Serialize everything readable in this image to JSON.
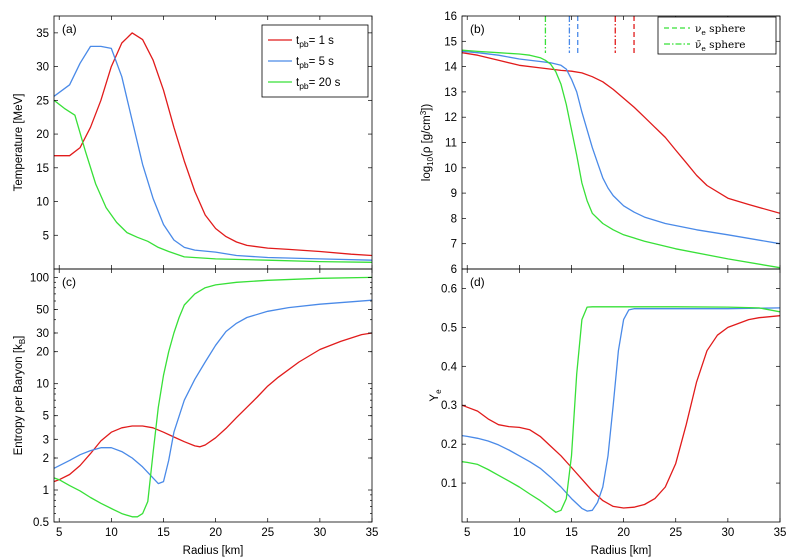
{
  "colors": {
    "red": "#e11b1b",
    "blue": "#4a8ae8",
    "green": "#38e038"
  },
  "legend_a": [
    {
      "label": "t",
      "sub": "pb",
      "suffix": "= 1 s",
      "color": "red"
    },
    {
      "label": "t",
      "sub": "pb",
      "suffix": "= 5 s",
      "color": "blue"
    },
    {
      "label": "t",
      "sub": "pb",
      "suffix": "= 20 s",
      "color": "green"
    }
  ],
  "legend_b": [
    {
      "symbol": "ν",
      "sub": "e",
      "suffix": " sphere",
      "style": "dashed",
      "color": "green"
    },
    {
      "symbol": "ν̄",
      "sub": "e",
      "suffix": " sphere",
      "style": "dashdot",
      "color": "green"
    }
  ],
  "chart_data": [
    {
      "id": "a",
      "panel_label": "(a)",
      "type": "line",
      "xlabel": "",
      "ylabel": "Temperature [MeV]",
      "yscale": "linear",
      "xlim": [
        4.5,
        35
      ],
      "ylim": [
        0,
        37.5
      ],
      "xticks": [
        5,
        10,
        15,
        20,
        25,
        30,
        35
      ],
      "xticklabels": [],
      "yticks": [
        5,
        10,
        15,
        20,
        25,
        30,
        35
      ],
      "series": [
        {
          "name": "t_pb = 1 s",
          "color": "red",
          "x": [
            4.5,
            6,
            7,
            8,
            9,
            10,
            11,
            12,
            13,
            14,
            15,
            16,
            17,
            18,
            19,
            20,
            21,
            22,
            23,
            25,
            27,
            30,
            33,
            35
          ],
          "y": [
            16.8,
            16.8,
            18,
            21,
            25,
            30,
            33.5,
            35,
            34,
            31,
            26.5,
            21,
            16,
            11.5,
            8,
            6,
            4.8,
            4,
            3.5,
            3.1,
            2.9,
            2.6,
            2.2,
            2
          ]
        },
        {
          "name": "t_pb = 5 s",
          "color": "blue",
          "x": [
            4.5,
            6,
            7,
            8,
            9,
            10,
            11,
            12,
            13,
            14,
            15,
            16,
            17,
            18,
            20,
            22,
            25,
            30,
            35
          ],
          "y": [
            25.6,
            27.3,
            30.5,
            33,
            33,
            32.7,
            28.5,
            22,
            15.5,
            10.5,
            6.6,
            4.3,
            3.2,
            2.8,
            2.5,
            2,
            1.7,
            1.5,
            1.3
          ]
        },
        {
          "name": "t_pb = 20 s",
          "color": "green",
          "x": [
            4.5,
            5.5,
            6.5,
            7.5,
            8.5,
            9.5,
            10.5,
            11.5,
            12.5,
            13.5,
            14.5,
            15.5,
            17,
            20,
            25,
            30,
            35
          ],
          "y": [
            25,
            23.8,
            22.8,
            17.5,
            12.6,
            9.1,
            6.9,
            5.4,
            4.7,
            4.1,
            3.2,
            2.6,
            1.8,
            1.5,
            1.3,
            1.1,
            1
          ]
        }
      ]
    },
    {
      "id": "b",
      "panel_label": "(b)",
      "type": "line",
      "xlabel": "",
      "ylabel": "log10(ρ [g/cm3])",
      "yscale": "linear",
      "xlim": [
        4.5,
        35
      ],
      "ylim": [
        6,
        16
      ],
      "xticks": [
        5,
        10,
        15,
        20,
        25,
        30,
        35
      ],
      "xticklabels": [],
      "yticks": [
        6,
        7,
        8,
        9,
        10,
        11,
        12,
        13,
        14,
        15,
        16
      ],
      "series": [
        {
          "name": "t_pb = 1 s",
          "color": "red",
          "x": [
            4.5,
            6,
            8,
            10,
            12,
            14,
            15,
            16,
            17,
            18,
            19,
            20,
            21,
            22,
            23,
            24,
            25,
            26,
            27,
            28,
            30,
            32,
            35
          ],
          "y": [
            14.55,
            14.45,
            14.25,
            14.05,
            13.95,
            13.85,
            13.82,
            13.75,
            13.6,
            13.4,
            13.1,
            12.75,
            12.4,
            12,
            11.6,
            11.2,
            10.7,
            10.2,
            9.7,
            9.3,
            8.8,
            8.55,
            8.2
          ]
        },
        {
          "name": "t_pb = 5 s",
          "color": "blue",
          "x": [
            4.5,
            6,
            8,
            10,
            12,
            13,
            14,
            14.5,
            15,
            15.5,
            16,
            16.5,
            17,
            17.5,
            18,
            18.5,
            19,
            20,
            21,
            22,
            24,
            27,
            30,
            35
          ],
          "y": [
            14.6,
            14.55,
            14.45,
            14.3,
            14.2,
            14.15,
            14.05,
            13.9,
            13.5,
            13,
            12.2,
            11.5,
            10.8,
            10.2,
            9.6,
            9.2,
            8.9,
            8.5,
            8.25,
            8.05,
            7.8,
            7.55,
            7.35,
            7
          ]
        },
        {
          "name": "t_pb = 20 s",
          "color": "green",
          "x": [
            4.5,
            6,
            8,
            10,
            11,
            12,
            12.5,
            13,
            13.5,
            14,
            14.5,
            15,
            15.5,
            16,
            16.5,
            17,
            18,
            19,
            20,
            22,
            25,
            30,
            35
          ],
          "y": [
            14.65,
            14.6,
            14.55,
            14.5,
            14.45,
            14.35,
            14.25,
            14.1,
            13.8,
            13.3,
            12.5,
            11.5,
            10.5,
            9.4,
            8.7,
            8.2,
            7.8,
            7.55,
            7.35,
            7.1,
            6.8,
            6.4,
            6.05
          ]
        }
      ],
      "sphere_markers": [
        {
          "x": 12.5,
          "color": "green",
          "style": "dashdot"
        },
        {
          "x": 14.8,
          "color": "blue",
          "style": "dashdot"
        },
        {
          "x": 15.6,
          "color": "blue",
          "style": "dashed"
        },
        {
          "x": 19.2,
          "color": "red",
          "style": "dashdot"
        },
        {
          "x": 21,
          "color": "red",
          "style": "dashed"
        }
      ]
    },
    {
      "id": "c",
      "panel_label": "(c)",
      "type": "line",
      "xlabel": "Radius [km]",
      "ylabel": "Entropy per Baryon [kB]",
      "yscale": "log",
      "xlim": [
        4.5,
        35
      ],
      "ylim": [
        0.5,
        120
      ],
      "xticks": [
        5,
        10,
        15,
        20,
        25,
        30,
        35
      ],
      "xticklabels": [
        "5",
        "10",
        "15",
        "20",
        "25",
        "30",
        "35"
      ],
      "yticks": [
        0.5,
        1,
        2,
        3,
        5,
        10,
        20,
        30,
        50,
        100
      ],
      "series": [
        {
          "name": "t_pb = 1 s",
          "color": "red",
          "x": [
            4.5,
            5,
            6,
            7,
            8,
            9,
            10,
            11,
            12,
            13,
            14,
            15,
            16,
            17,
            18,
            18.5,
            19,
            20,
            21,
            22,
            23,
            24,
            25,
            26,
            28,
            30,
            32,
            34,
            35
          ],
          "y": [
            1.2,
            1.25,
            1.4,
            1.7,
            2.2,
            2.9,
            3.5,
            3.85,
            4,
            4,
            3.85,
            3.5,
            3.15,
            2.85,
            2.6,
            2.55,
            2.65,
            3.1,
            3.8,
            4.8,
            6,
            7.5,
            9.5,
            11.5,
            16,
            21,
            25,
            29,
            30
          ]
        },
        {
          "name": "t_pb = 5 s",
          "color": "blue",
          "x": [
            4.5,
            6,
            7,
            8,
            9,
            10,
            11,
            12,
            13,
            14,
            14.5,
            15,
            15.5,
            16,
            17,
            18,
            19,
            20,
            21,
            22,
            23,
            25,
            27,
            30,
            33,
            35
          ],
          "y": [
            1.6,
            1.9,
            2.15,
            2.35,
            2.5,
            2.5,
            2.3,
            2,
            1.65,
            1.3,
            1.15,
            1.2,
            1.9,
            3.5,
            7,
            11,
            16,
            23,
            31,
            37,
            42,
            48,
            52,
            56,
            59,
            61
          ]
        },
        {
          "name": "t_pb = 20 s",
          "color": "green",
          "x": [
            4.5,
            5,
            6,
            7,
            8,
            9,
            10,
            11,
            12,
            12.5,
            13,
            13.5,
            14,
            14.5,
            15,
            15.5,
            16,
            16.5,
            17,
            18,
            19,
            20,
            22,
            25,
            30,
            35
          ],
          "y": [
            1.3,
            1.25,
            1.1,
            0.98,
            0.85,
            0.75,
            0.67,
            0.6,
            0.56,
            0.56,
            0.6,
            0.78,
            2.2,
            6,
            12,
            20,
            30,
            42,
            55,
            70,
            80,
            85,
            90,
            94,
            98,
            100
          ]
        }
      ]
    },
    {
      "id": "d",
      "panel_label": "(d)",
      "type": "line",
      "xlabel": "Radius [km]",
      "ylabel": "Ye",
      "yscale": "linear",
      "xlim": [
        4.5,
        35
      ],
      "ylim": [
        0,
        0.65
      ],
      "xticks": [
        5,
        10,
        15,
        20,
        25,
        30,
        35
      ],
      "xticklabels": [
        "5",
        "10",
        "15",
        "20",
        "25",
        "30",
        "35"
      ],
      "yticks": [
        0.1,
        0.2,
        0.3,
        0.4,
        0.5,
        0.6
      ],
      "series": [
        {
          "name": "t_pb = 1 s",
          "color": "red",
          "x": [
            4.5,
            5,
            6,
            7,
            8,
            9,
            10,
            11,
            12,
            13,
            14,
            15,
            16,
            17,
            18,
            19,
            20,
            21,
            22,
            23,
            24,
            25,
            26,
            27,
            28,
            29,
            30,
            31,
            32,
            33,
            35
          ],
          "y": [
            0.3,
            0.295,
            0.285,
            0.265,
            0.25,
            0.245,
            0.243,
            0.237,
            0.22,
            0.195,
            0.17,
            0.14,
            0.11,
            0.08,
            0.055,
            0.04,
            0.036,
            0.038,
            0.045,
            0.06,
            0.09,
            0.15,
            0.25,
            0.36,
            0.44,
            0.48,
            0.5,
            0.51,
            0.52,
            0.525,
            0.53
          ]
        },
        {
          "name": "t_pb = 5 s",
          "color": "blue",
          "x": [
            4.5,
            5,
            6,
            7,
            8,
            9,
            10,
            11,
            12,
            13,
            14,
            15,
            16,
            16.5,
            17,
            17.5,
            18,
            18.5,
            19,
            19.5,
            20,
            20.5,
            21,
            22,
            25,
            30,
            35
          ],
          "y": [
            0.222,
            0.22,
            0.215,
            0.208,
            0.198,
            0.185,
            0.17,
            0.155,
            0.138,
            0.115,
            0.09,
            0.06,
            0.035,
            0.028,
            0.03,
            0.05,
            0.09,
            0.17,
            0.3,
            0.44,
            0.52,
            0.545,
            0.548,
            0.548,
            0.548,
            0.548,
            0.55
          ]
        },
        {
          "name": "t_pb = 20 s",
          "color": "green",
          "x": [
            4.5,
            5,
            6,
            7,
            8,
            9,
            10,
            11,
            12,
            13,
            13.5,
            14,
            14.5,
            15,
            15.5,
            16,
            16.5,
            17,
            20,
            25,
            30,
            33,
            35
          ],
          "y": [
            0.155,
            0.153,
            0.148,
            0.135,
            0.12,
            0.105,
            0.09,
            0.072,
            0.055,
            0.035,
            0.025,
            0.03,
            0.06,
            0.17,
            0.38,
            0.52,
            0.552,
            0.553,
            0.553,
            0.553,
            0.552,
            0.55,
            0.54
          ]
        }
      ]
    }
  ]
}
